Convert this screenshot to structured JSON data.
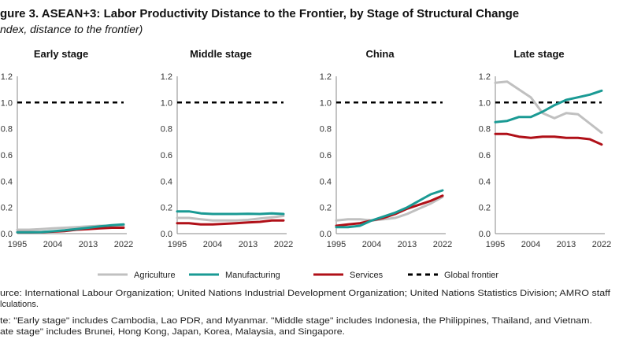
{
  "title": "gure 3. ASEAN+3: Labor Productivity Distance to the Frontier, by Stage of Structural Change",
  "subtitle": "ndex, distance to the frontier)",
  "colors": {
    "Agriculture": "#c0c0c0",
    "Manufacturing": "#1a9a94",
    "Services": "#b01018",
    "Global frontier": "#000000"
  },
  "legend": [
    "Agriculture",
    "Manufacturing",
    "Services",
    "Global frontier"
  ],
  "notes": [
    "urce: International Labour Organization; United Nations Industrial Development Organization; United Nations Statistics Division; AMRO staff",
    "lculations.",
    "te: \"Early stage\" includes Cambodia, Lao PDR, and Myanmar. \"Middle stage\" includes Indonesia, the Philippines, Thailand, and Vietnam.",
    "ate stage\" includes Brunei, Hong Kong, Japan, Korea, Malaysia, and Singapore."
  ],
  "chart_data": [
    {
      "type": "line",
      "title": "Early stage",
      "x": [
        1995,
        1998,
        2001,
        2004,
        2007,
        2010,
        2013,
        2016,
        2019,
        2022
      ],
      "xticks": [
        "1995",
        "2004",
        "2013",
        "2022"
      ],
      "yticks": [
        "0.0",
        "0.2",
        "0.4",
        "0.6",
        "0.8",
        "1.0",
        "1.2"
      ],
      "ylim": [
        0,
        1.2
      ],
      "series": [
        {
          "name": "Agriculture",
          "values": [
            0.03,
            0.03,
            0.035,
            0.04,
            0.045,
            0.05,
            0.055,
            0.06,
            0.06,
            0.06
          ]
        },
        {
          "name": "Manufacturing",
          "values": [
            0.01,
            0.01,
            0.012,
            0.018,
            0.025,
            0.035,
            0.045,
            0.055,
            0.065,
            0.07
          ]
        },
        {
          "name": "Services",
          "values": [
            0.01,
            0.01,
            0.012,
            0.015,
            0.02,
            0.03,
            0.035,
            0.04,
            0.045,
            0.045
          ]
        },
        {
          "name": "Global frontier",
          "values": [
            1,
            1,
            1,
            1,
            1,
            1,
            1,
            1,
            1,
            1
          ]
        }
      ]
    },
    {
      "type": "line",
      "title": "Middle stage",
      "x": [
        1995,
        1998,
        2001,
        2004,
        2007,
        2010,
        2013,
        2016,
        2019,
        2022
      ],
      "xticks": [
        "1995",
        "2004",
        "2013",
        "2022"
      ],
      "yticks": [
        "0.0",
        "0.2",
        "0.4",
        "0.6",
        "0.8",
        "1.0",
        "1.2"
      ],
      "ylim": [
        0,
        1.2
      ],
      "series": [
        {
          "name": "Agriculture",
          "values": [
            0.12,
            0.12,
            0.11,
            0.1,
            0.1,
            0.1,
            0.105,
            0.115,
            0.125,
            0.135
          ]
        },
        {
          "name": "Manufacturing",
          "values": [
            0.17,
            0.17,
            0.155,
            0.15,
            0.15,
            0.15,
            0.152,
            0.15,
            0.155,
            0.15
          ]
        },
        {
          "name": "Services",
          "values": [
            0.08,
            0.08,
            0.07,
            0.07,
            0.075,
            0.08,
            0.085,
            0.09,
            0.1,
            0.1
          ]
        },
        {
          "name": "Global frontier",
          "values": [
            1,
            1,
            1,
            1,
            1,
            1,
            1,
            1,
            1,
            1
          ]
        }
      ]
    },
    {
      "type": "line",
      "title": "China",
      "x": [
        1995,
        1998,
        2001,
        2004,
        2007,
        2010,
        2013,
        2016,
        2019,
        2022
      ],
      "xticks": [
        "1995",
        "2004",
        "2013",
        "2022"
      ],
      "yticks": [
        "0.0",
        "0.2",
        "0.4",
        "0.6",
        "0.8",
        "1.0",
        "1.2"
      ],
      "ylim": [
        0,
        1.2
      ],
      "series": [
        {
          "name": "Agriculture",
          "values": [
            0.1,
            0.11,
            0.11,
            0.1,
            0.11,
            0.12,
            0.15,
            0.19,
            0.23,
            0.28
          ]
        },
        {
          "name": "Manufacturing",
          "values": [
            0.05,
            0.05,
            0.06,
            0.1,
            0.13,
            0.16,
            0.2,
            0.25,
            0.3,
            0.33
          ]
        },
        {
          "name": "Services",
          "values": [
            0.06,
            0.07,
            0.08,
            0.1,
            0.12,
            0.15,
            0.19,
            0.22,
            0.25,
            0.29
          ]
        },
        {
          "name": "Global frontier",
          "values": [
            1,
            1,
            1,
            1,
            1,
            1,
            1,
            1,
            1,
            1
          ]
        }
      ]
    },
    {
      "type": "line",
      "title": "Late stage",
      "x": [
        1995,
        1998,
        2001,
        2004,
        2007,
        2010,
        2013,
        2016,
        2019,
        2022
      ],
      "xticks": [
        "1995",
        "2004",
        "2013",
        "2022"
      ],
      "yticks": [
        "0.0",
        "0.2",
        "0.4",
        "0.6",
        "0.8",
        "1.0",
        "1.2"
      ],
      "ylim": [
        0,
        1.2
      ],
      "series": [
        {
          "name": "Agriculture",
          "values": [
            1.15,
            1.16,
            1.1,
            1.04,
            0.92,
            0.88,
            0.92,
            0.91,
            0.84,
            0.77
          ]
        },
        {
          "name": "Manufacturing",
          "values": [
            0.85,
            0.86,
            0.89,
            0.89,
            0.93,
            0.98,
            1.02,
            1.04,
            1.06,
            1.09
          ]
        },
        {
          "name": "Services",
          "values": [
            0.76,
            0.76,
            0.74,
            0.73,
            0.74,
            0.74,
            0.73,
            0.73,
            0.72,
            0.68
          ]
        },
        {
          "name": "Global frontier",
          "values": [
            1,
            1,
            1,
            1,
            1,
            1,
            1,
            1,
            1,
            1
          ]
        }
      ]
    }
  ]
}
